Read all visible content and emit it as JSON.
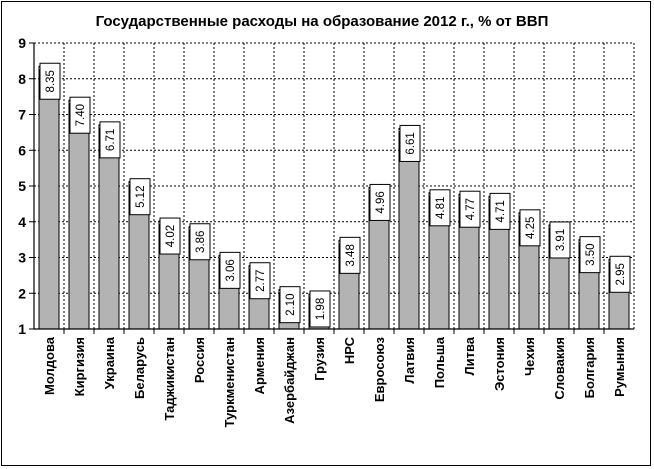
{
  "chart_data": {
    "type": "bar",
    "title": "Государственные расходы на образование 2012 г., % от ВВП",
    "xlabel": "",
    "ylabel": "",
    "ylim": [
      1,
      9
    ],
    "yticks": [
      "1",
      "2",
      "3",
      "4",
      "5",
      "6",
      "7",
      "8",
      "9"
    ],
    "grid": true,
    "categories": [
      "Молдова",
      "Киргизия",
      "Украина",
      "Беларусь",
      "Таджикистан",
      "Россия",
      "Туркменистан",
      "Армения",
      "Азербайджан",
      "Грузия",
      "НРС",
      "Евросоюз",
      "Латвия",
      "Польша",
      "Литва",
      "Эстония",
      "Чехия",
      "Словакия",
      "Болгария",
      "Румыния"
    ],
    "values": [
      8.35,
      7.4,
      6.71,
      5.12,
      4.02,
      3.86,
      3.06,
      2.77,
      2.1,
      1.98,
      3.48,
      4.96,
      6.61,
      4.81,
      4.77,
      4.71,
      4.25,
      3.91,
      3.5,
      2.95
    ],
    "value_labels": [
      "8.35",
      "7.40",
      "6.71",
      "5.12",
      "4.02",
      "3.86",
      "3.06",
      "2.77",
      "2.10",
      "1.98",
      "3.48",
      "4.96",
      "6.61",
      "4.81",
      "4.77",
      "4.71",
      "4.25",
      "3.91",
      "3.50",
      "2.95"
    ],
    "colors": {
      "bar": "#b3b3b3",
      "bar_edge": "#000000",
      "grid": "#000000",
      "label_bg": "#ffffff"
    }
  }
}
